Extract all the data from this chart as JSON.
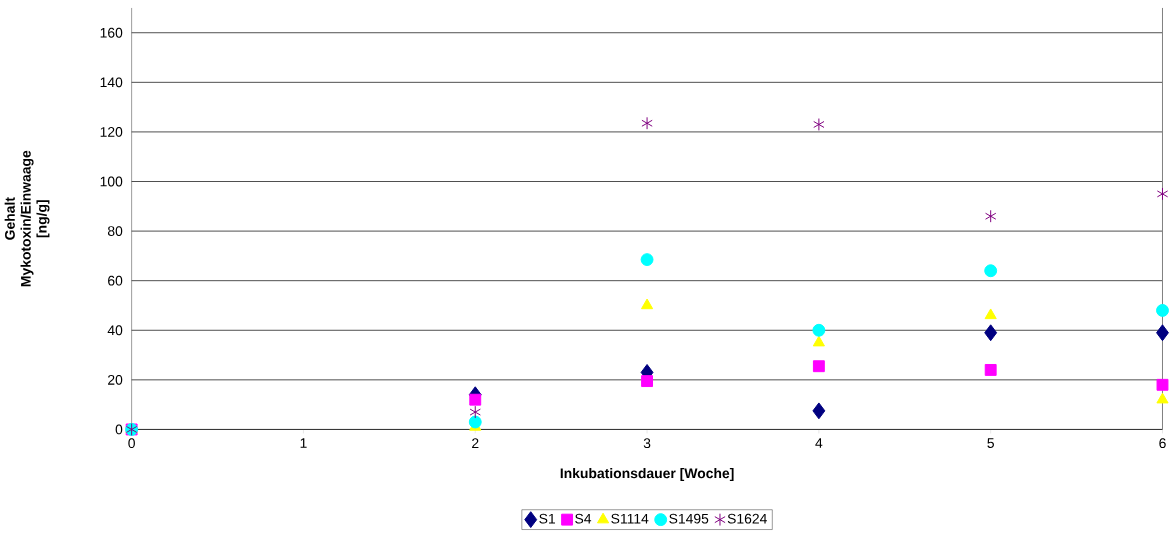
{
  "chart_data": {
    "type": "scatter",
    "xlabel": "Inkubationsdauer [Woche]",
    "ylabel": "Gehalt Mykotoxin/Einwaage [ng/g]",
    "x": [
      0,
      2,
      3,
      4,
      5,
      6
    ],
    "series": [
      {
        "name": "S1",
        "color": "#000080",
        "marker": "diamond",
        "values": [
          null,
          14,
          23,
          7.5,
          39,
          39
        ]
      },
      {
        "name": "S4",
        "color": "#ff00ff",
        "marker": "square",
        "values": [
          0,
          12,
          19.5,
          25.5,
          24,
          18
        ]
      },
      {
        "name": "S1114",
        "color": "#ffff00",
        "marker": "triangle",
        "values": [
          0,
          1,
          50,
          35,
          46,
          12
        ]
      },
      {
        "name": "S1495",
        "color": "#00ffff",
        "marker": "circle",
        "values": [
          0,
          3,
          68.5,
          40,
          64,
          48
        ]
      },
      {
        "name": "S1624",
        "color": "#800080",
        "marker": "cross",
        "values": [
          0,
          7,
          123.5,
          123,
          86,
          95
        ]
      }
    ],
    "xlim": [
      0,
      6
    ],
    "xticks": [
      0,
      1,
      2,
      3,
      4,
      5,
      6
    ],
    "ylim": [
      0,
      170
    ],
    "yticks": [
      0,
      20,
      40,
      60,
      80,
      100,
      120,
      140,
      160
    ],
    "grid": "y",
    "legend": "bottom"
  }
}
